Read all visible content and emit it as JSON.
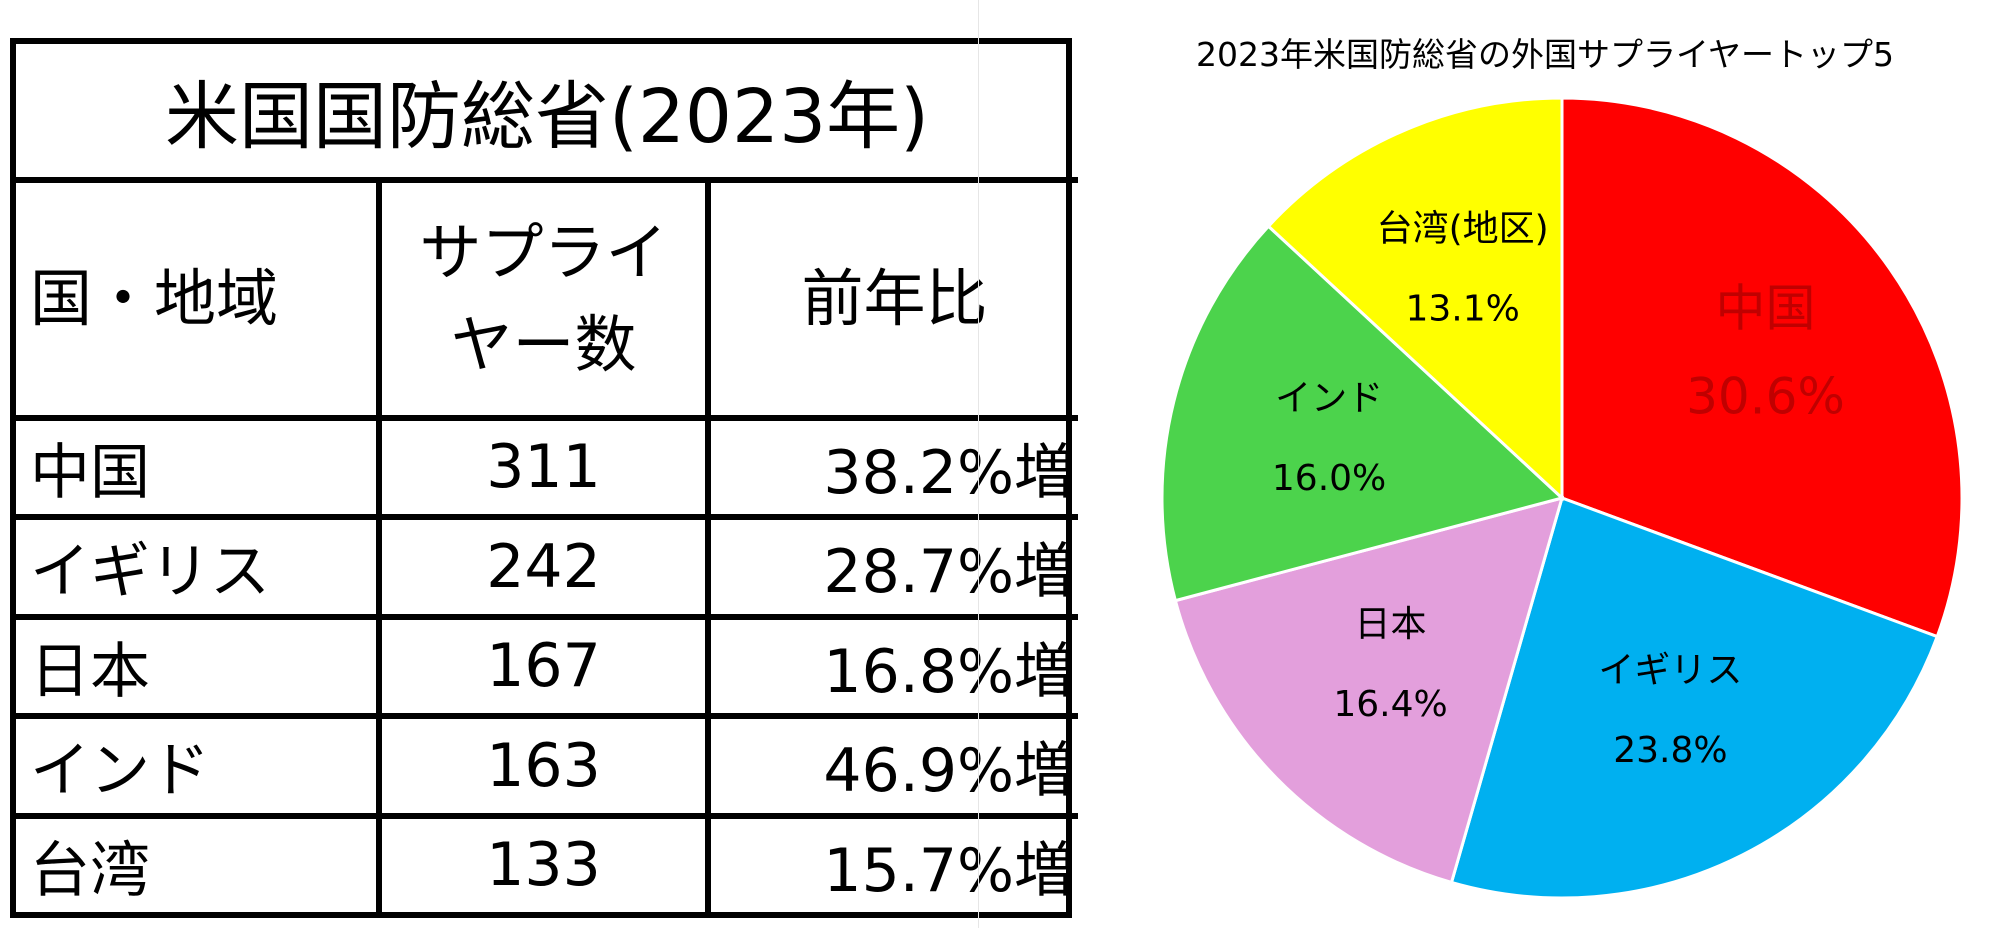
{
  "table": {
    "title": "米国国防総省(2023年)",
    "headers": {
      "country": "国・地域",
      "suppliers_line1": "サプライ",
      "suppliers_line2": "ヤー数",
      "yoy": "前年比"
    },
    "rows": [
      {
        "name": "中国",
        "count": "311",
        "yoy": "38.2%増"
      },
      {
        "name": "イギリス",
        "count": "242",
        "yoy": "28.7%増"
      },
      {
        "name": "日本",
        "count": "167",
        "yoy": "16.8%増"
      },
      {
        "name": "インド",
        "count": "163",
        "yoy": "46.9%増"
      },
      {
        "name": "台湾",
        "count": "133",
        "yoy": "15.7%増"
      }
    ]
  },
  "chart_data": {
    "type": "pie",
    "title": "2023年米国防総省の外国サプライヤートップ5",
    "slices": [
      {
        "label": "中国",
        "value": 30.6,
        "value_label": "30.6%",
        "color": "#ff0000",
        "label_color": "#c00000",
        "label_size": "large"
      },
      {
        "label": "イギリス",
        "value": 23.8,
        "value_label": "23.8%",
        "color": "#00b0f0",
        "label_color": "#000000",
        "label_size": "normal"
      },
      {
        "label": "日本",
        "value": 16.4,
        "value_label": "16.4%",
        "color": "#e39fdc",
        "label_color": "#000000",
        "label_size": "normal"
      },
      {
        "label": "インド",
        "value": 16.0,
        "value_label": "16.0%",
        "color": "#4cd34c",
        "label_color": "#000000",
        "label_size": "normal"
      },
      {
        "label": "台湾(地区)",
        "value": 13.1,
        "value_label": "13.1%",
        "color": "#ffff00",
        "label_color": "#000000",
        "label_size": "normal"
      }
    ],
    "start_angle": "12 o'clock",
    "direction": "clockwise",
    "legend": "none"
  }
}
